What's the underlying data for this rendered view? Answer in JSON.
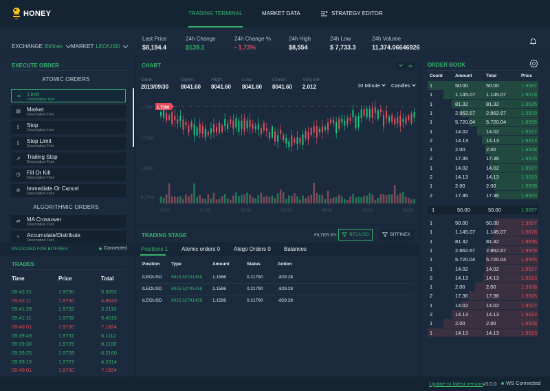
{
  "app": {
    "name": "HONEY"
  },
  "nav": [
    {
      "label": "TRADING TERMINAL",
      "active": true
    },
    {
      "label": "MARKET DATA",
      "active": false
    },
    {
      "label": "STRATEGY EDITOR",
      "active": false
    }
  ],
  "ticker": {
    "exchange_label": "EXCHANGE",
    "exchange_value": "Bitfinex",
    "market_label": "MARKET",
    "market_value": "LEO/USD",
    "stats": [
      {
        "label": "Last Price",
        "value": "$8,194.4"
      },
      {
        "label": "24h Change",
        "value": "$139.1"
      },
      {
        "label": "24h Change %",
        "value": "- 1.73%"
      },
      {
        "label": "24h High",
        "value": "$8,554"
      },
      {
        "label": "24h Low",
        "value": "$ 7,733.3"
      },
      {
        "label": "24h Volume",
        "value": "11,374.06646926"
      }
    ]
  },
  "execute": {
    "title": "EXECUTE ORDER",
    "atomic_title": "ATOMIC ORDERS",
    "algo_title": "ALGORITHMIC ORDERS",
    "atomic": [
      {
        "label": "Limit",
        "desc": "Description Text",
        "icon": "⇹"
      },
      {
        "label": "Market",
        "desc": "Description Text",
        "icon": "▤"
      },
      {
        "label": "Stop",
        "desc": "Description Text",
        "icon": "▯"
      },
      {
        "label": "Stop Limit",
        "desc": "Description Text",
        "icon": "▯"
      },
      {
        "label": "Trailing Stop",
        "desc": "Description Text",
        "icon": "↗"
      },
      {
        "label": "Fill Or Kill",
        "desc": "Description Text",
        "icon": "◷"
      },
      {
        "label": "Immediate Or Cancel",
        "desc": "Description Text",
        "icon": "⊘"
      }
    ],
    "algo": [
      {
        "label": "MA Crossover",
        "desc": "Description Text",
        "icon": "⇄"
      },
      {
        "label": "Accumulate/Distribute",
        "desc": "Description Text",
        "icon": "⑂"
      }
    ],
    "unlock_text": "UNLOCKED FOR BITFINEX",
    "connected_text": "Connected"
  },
  "trades": {
    "title": "TRADES",
    "headers": [
      "Time",
      "Price",
      "Total"
    ],
    "rows": [
      {
        "time": "09:42:21",
        "price": "1.9750",
        "total": "5.3052",
        "side": "buy"
      },
      {
        "time": "09:42:11",
        "price": "1.9730",
        "total": "4.8623",
        "side": "sell"
      },
      {
        "time": "09:41:29",
        "price": "1.9732",
        "total": "3.2110",
        "side": "buy"
      },
      {
        "time": "09:41:11",
        "price": "1.9732",
        "total": "5.4015",
        "side": "buy"
      },
      {
        "time": "09:40:01",
        "price": "1.9730",
        "total": "7.1824",
        "side": "sell"
      },
      {
        "time": "09:39:49",
        "price": "1.9731",
        "total": "6.1112",
        "side": "buy"
      },
      {
        "time": "09:39:30",
        "price": "1.9729",
        "total": "8.1100",
        "side": "buy"
      },
      {
        "time": "09:39:25",
        "price": "1.9728",
        "total": "6.2160",
        "side": "buy"
      },
      {
        "time": "09:39:15",
        "price": "1.9727",
        "total": "4.2014",
        "side": "buy"
      },
      {
        "time": "09:40:01",
        "price": "1.9730",
        "total": "7.1824",
        "side": "sell"
      }
    ]
  },
  "chart": {
    "title": "CHART",
    "ohlc": [
      {
        "label": "Date:",
        "value": "2019/09/30"
      },
      {
        "label": "Open:",
        "value": "8041.60"
      },
      {
        "label": "High:",
        "value": "8041.60"
      },
      {
        "label": "Low:",
        "value": "8041.60"
      },
      {
        "label": "Close:",
        "value": "8041.60"
      },
      {
        "label": "Volume:",
        "value": "2.012"
      }
    ],
    "interval": "10 Minute",
    "type": "Candles",
    "price_tag": "1.7500",
    "y_labels": [
      "1.7500",
      "1.7000",
      "1.6500",
      "0.2764"
    ],
    "x_labels": [
      "00:00",
      "01:00",
      "02:00",
      "03:00",
      "04:00",
      "05:00",
      "06:00"
    ]
  },
  "stage": {
    "title": "TRADING STAGE",
    "filter_label": "FILTER BY:",
    "filter_pair": "BTC/USD",
    "filter_exchange": "BITFINEX",
    "tabs": [
      "Positions 1",
      "Atomic orders 0",
      "Alego Orders 0",
      "Balances"
    ],
    "headers": [
      "Position",
      "Type",
      "Amount",
      "Status",
      "Action"
    ],
    "rows": [
      [
        "tLEOUSD",
        "6915.52741458",
        "1.1586",
        "0.21790",
        "-829.28"
      ],
      [
        "tLEOUSD",
        "6915.52741458",
        "1.1586",
        "0.21790",
        "-829.28"
      ],
      [
        "tLEOUSD",
        "6915.52741458",
        "1.1586",
        "0.21790",
        "-829.28"
      ]
    ]
  },
  "orderbook": {
    "title": "ORDER BOOK",
    "headers": [
      "Count",
      "Amount",
      "Total",
      "Price"
    ],
    "bids": [
      [
        "1",
        "50.00",
        "50.00",
        "1.9697",
        100
      ],
      [
        "1",
        "1.145.07",
        "1.145.07",
        "1.9678",
        86
      ],
      [
        "1",
        "81.32",
        "81.32",
        "1.9635",
        78
      ],
      [
        "1",
        "2.862.67",
        "2.862.67",
        "1.9509",
        70
      ],
      [
        "1",
        "5.720.04",
        "5.720.04",
        "1.9555",
        63
      ],
      [
        "1",
        "14.02",
        "14.02",
        "1.9527",
        55
      ],
      [
        "2",
        "14.13",
        "14.13",
        "1.9513",
        51
      ],
      [
        "1",
        "2.00",
        "2.00",
        "1.9508",
        48
      ],
      [
        "2",
        "17.36",
        "17.36",
        "1.9505",
        44
      ],
      [
        "1",
        "14.02",
        "14.02",
        "1.9527",
        45
      ],
      [
        "2",
        "14.13",
        "14.13",
        "1.9513",
        43
      ],
      [
        "1",
        "2.00",
        "2.00",
        "1.9508",
        40
      ],
      [
        "2",
        "17.36",
        "17.36",
        "1.9505",
        39
      ]
    ],
    "spread": [
      "1",
      "50.00",
      "50.00",
      "1.9697"
    ],
    "asks": [
      [
        "1",
        "50.00",
        "50.00",
        "1.9697",
        39
      ],
      [
        "1",
        "1.145.07",
        "1.145.07",
        "1.9678",
        41
      ],
      [
        "1",
        "81.32",
        "81.32",
        "1.9635",
        43
      ],
      [
        "1",
        "2.862.67",
        "2.862.67",
        "1.9509",
        46
      ],
      [
        "1",
        "5.720.04",
        "5.720.04",
        "1.9555",
        47
      ],
      [
        "1",
        "14.02",
        "14.02",
        "1.9527",
        48
      ],
      [
        "2",
        "14.13",
        "14.13",
        "1.9513",
        50
      ],
      [
        "1",
        "2.00",
        "2.00",
        "1.9508",
        57
      ],
      [
        "2",
        "17.36",
        "17.36",
        "1.9505",
        63
      ],
      [
        "1",
        "14.02",
        "14.02",
        "1.9527",
        70
      ],
      [
        "2",
        "14.13",
        "14.13",
        "1.9513",
        78
      ],
      [
        "1",
        "2.00",
        "2.00",
        "1.9508",
        86
      ],
      [
        "1",
        "14.13",
        "14.13",
        "1.9513",
        100
      ]
    ]
  },
  "footer": {
    "update_link": "Update to latest version",
    "version": "v3.0.0",
    "ws_status": "WS Connected"
  },
  "colors": {
    "accent": "#36b26a",
    "down": "#e44b5a",
    "bg": "#1b2b3d",
    "bg_dark": "#152433"
  }
}
